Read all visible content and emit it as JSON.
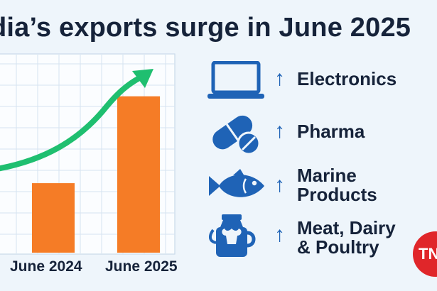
{
  "headline": "dia’s exports surge in June 2025",
  "chart_data": {
    "type": "bar",
    "categories": [
      "June 2024",
      "June 2025"
    ],
    "values": [
      1.0,
      2.25
    ],
    "title": "",
    "xlabel": "",
    "ylabel": "",
    "ylim": [
      0,
      2.9
    ],
    "trend_arrow": true,
    "bar_color": "#f57c26",
    "arrow_color": "#1fbf70",
    "grid": true
  },
  "items": [
    {
      "label_lines": [
        "Electronics"
      ],
      "icon": "laptop-icon"
    },
    {
      "label_lines": [
        "Pharma"
      ],
      "icon": "pills-icon"
    },
    {
      "label_lines": [
        "Marine",
        "Products"
      ],
      "icon": "fish-icon"
    },
    {
      "label_lines": [
        "Meat, Dairy",
        "& Poultry"
      ],
      "icon": "milk-can-icon"
    }
  ],
  "arrow_symbol": "↑",
  "badge": "TN",
  "colors": {
    "icon": "#1f63b6",
    "badge": "#e0262a"
  }
}
